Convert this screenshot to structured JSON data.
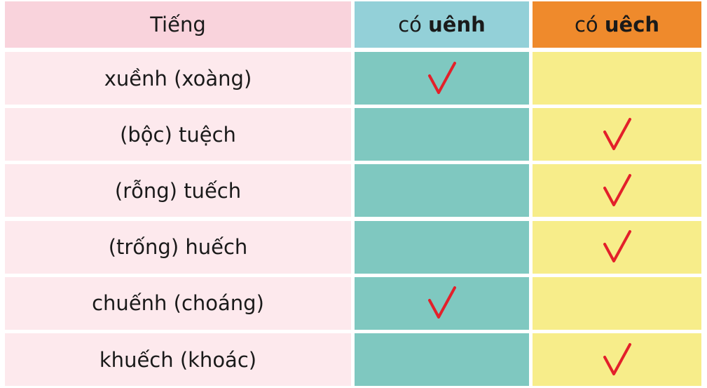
{
  "header": {
    "word": "Tiếng",
    "col_uenh": {
      "prefix": "có",
      "bold": "uênh"
    },
    "col_uech": {
      "prefix": "có",
      "bold": "uêch"
    }
  },
  "table": {
    "rows": [
      {
        "word": "xuềnh (xoàng)",
        "uenh": true,
        "uech": false
      },
      {
        "word": "(bộc) tuệch",
        "uenh": false,
        "uech": true
      },
      {
        "word": "(rỗng) tuếch",
        "uenh": false,
        "uech": true
      },
      {
        "word": "(trống) huếch",
        "uenh": false,
        "uech": true
      },
      {
        "word": "chuếnh (choáng)",
        "uenh": true,
        "uech": false
      },
      {
        "word": "khuếch (khoác)",
        "uenh": false,
        "uech": true
      }
    ]
  }
}
